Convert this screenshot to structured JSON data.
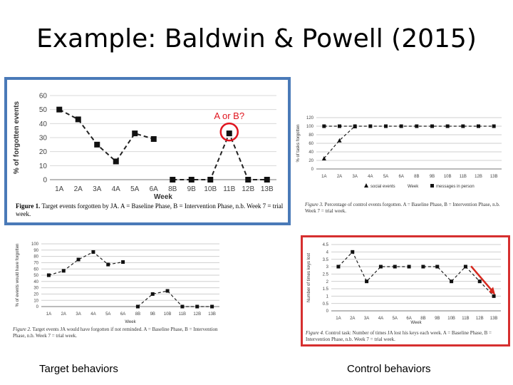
{
  "slide": {
    "title": "Example: Baldwin & Powell (2015)",
    "bottom_left_label": "Target behaviors",
    "bottom_right_label": "Control behaviors",
    "annotation": "A or B?",
    "colors": {
      "highlight_border": "#4a7ab8",
      "alert_border": "#d62f2f",
      "circle": "#e0141e",
      "arrow": "#d6281e"
    }
  },
  "chart_data": [
    {
      "type": "line",
      "ylabel": "% of forgotten events",
      "xlabel": "Week",
      "ylim": [
        0,
        60
      ],
      "yticks": [
        0,
        10,
        20,
        30,
        40,
        50,
        60
      ],
      "categories": [
        "1A",
        "2A",
        "3A",
        "4A",
        "5A",
        "6A",
        "8B",
        "9B",
        "10B",
        "11B",
        "12B",
        "13B"
      ],
      "segments": [
        {
          "values": [
            50,
            43,
            25,
            13,
            33,
            29
          ]
        },
        {
          "values": [
            0,
            0,
            0,
            33,
            0,
            0
          ]
        }
      ],
      "caption_label": "Figure 1.",
      "caption_text": "Target events forgotten by JA. A = Baseline Phase, B = Intervention Phase, n.b. Week 7 = trial week."
    },
    {
      "type": "line",
      "ylabel": "% of events would have forgotten",
      "xlabel": "Week",
      "ylim": [
        0,
        100
      ],
      "yticks": [
        0,
        10,
        20,
        30,
        40,
        50,
        60,
        70,
        80,
        90,
        100
      ],
      "categories": [
        "1A",
        "2A",
        "3A",
        "4A",
        "5A",
        "6A",
        "8B",
        "9B",
        "10B",
        "11B",
        "12B",
        "13B"
      ],
      "segments": [
        {
          "values": [
            50,
            57,
            75,
            87,
            67,
            71
          ]
        },
        {
          "values": [
            0,
            20,
            25,
            0,
            0,
            0
          ]
        }
      ],
      "caption_label": "Figure 2.",
      "caption_text": "Target events JA would have forgotten if not reminded. A = Baseline Phase, B = Intervention Phase, n.b. Week 7 = trial week."
    },
    {
      "type": "line",
      "ylabel": "% of tasks forgotten",
      "ylim": [
        0,
        120
      ],
      "yticks": [
        0,
        20,
        40,
        60,
        80,
        100,
        120
      ],
      "categories": [
        "1A",
        "2A",
        "3A",
        "4A",
        "5A",
        "6A",
        "8B",
        "9B",
        "10B",
        "11B",
        "12B",
        "13B"
      ],
      "series": [
        {
          "name": "social events",
          "marker": "triangle",
          "values": [
            25,
            67,
            100,
            null,
            null,
            null,
            null,
            null,
            null,
            null,
            null,
            null
          ]
        },
        {
          "name": "messages in person",
          "marker": "square",
          "values": [
            100,
            100,
            100,
            100,
            100,
            100,
            100,
            100,
            100,
            100,
            100,
            100
          ]
        }
      ],
      "legend_week": "Week",
      "caption_label": "Figure 3.",
      "caption_text": "Percentage of control events forgotten. A = Baseline Phase, B = Intervention Phase, n.b. Week 7 = trial week."
    },
    {
      "type": "line",
      "ylabel": "Number of times keys lost",
      "xlabel": "Week",
      "ylim": [
        0,
        4.5
      ],
      "yticks": [
        "0",
        "0.5",
        "1",
        "1.5",
        "2",
        "2.5",
        "3",
        "3.5",
        "4",
        "4.5"
      ],
      "categories": [
        "1A",
        "2A",
        "3A",
        "4A",
        "5A",
        "6A",
        "8B",
        "9B",
        "10B",
        "11B",
        "12B",
        "13B"
      ],
      "segments": [
        {
          "values": [
            3,
            4,
            2,
            3,
            3,
            3
          ]
        },
        {
          "values": [
            3,
            3,
            2,
            3,
            2,
            1
          ]
        }
      ],
      "caption_label": "Figure 4.",
      "caption_text": "Control task: Number of times JA lost his keys each week. A = Baseline Phase, B = Intervention Phase, n.b. Week 7 = trial week."
    }
  ]
}
